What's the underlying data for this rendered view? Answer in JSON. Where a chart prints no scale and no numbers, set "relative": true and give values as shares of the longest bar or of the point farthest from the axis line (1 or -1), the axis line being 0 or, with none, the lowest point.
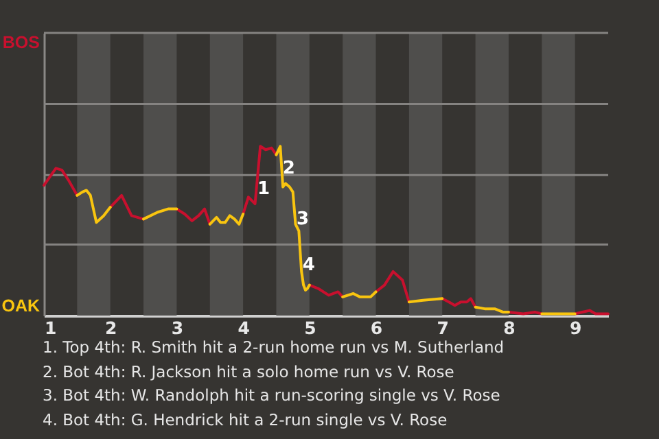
{
  "chart_data": {
    "type": "line",
    "relative": true,
    "x": [
      1,
      1.18,
      1.27,
      1.37,
      1.5,
      1.58,
      1.64,
      1.7,
      1.79,
      1.9,
      2,
      2.17,
      2.32,
      2.5,
      2.71,
      2.87,
      3,
      3.12,
      3.23,
      3.33,
      3.42,
      3.5,
      3.6,
      3.66,
      3.73,
      3.8,
      3.87,
      3.94,
      4,
      4.08,
      4.18,
      4.26,
      4.34,
      4.43,
      4.5,
      4.56,
      4.6,
      4.64,
      4.7,
      4.75,
      4.79,
      4.84,
      4.88,
      4.91,
      4.94,
      4.97,
      5,
      5.13,
      5.29,
      5.43,
      5.5,
      5.66,
      5.76,
      5.92,
      6,
      6.13,
      6.26,
      6.4,
      6.5,
      6.71,
      7,
      7.1,
      7.19,
      7.28,
      7.37,
      7.43,
      7.5,
      7.64,
      7.79,
      7.92,
      8,
      8.22,
      8.4,
      8.5,
      8.75,
      9,
      9.11,
      9.22,
      9.31,
      9.5
    ],
    "series": [
      {
        "name": "BOS",
        "color": "#c8102e",
        "values": [
          0.77,
          0.87,
          0.86,
          0.8,
          0.71,
          null,
          null,
          null,
          null,
          null,
          0.64,
          0.71,
          0.59,
          0.57,
          null,
          null,
          0.63,
          0.6,
          0.56,
          0.59,
          0.63,
          0.54,
          null,
          null,
          null,
          null,
          null,
          null,
          0.6,
          0.7,
          0.66,
          1,
          0.98,
          0.99,
          0.95,
          null,
          null,
          null,
          null,
          null,
          null,
          null,
          null,
          null,
          null,
          null,
          0.18,
          0.16,
          0.12,
          0.14,
          0.11,
          null,
          null,
          null,
          0.14,
          0.18,
          0.26,
          0.21,
          0.08,
          null,
          0.1,
          0.08,
          0.06,
          0.08,
          0.08,
          0.1,
          0.05,
          null,
          null,
          null,
          0.02,
          0.01,
          0.02,
          0.01,
          null,
          0.01,
          0.02,
          0.03,
          0.01,
          0.01
        ]
      },
      {
        "name": "OAK",
        "color": "#f9c50f",
        "values": [
          null,
          null,
          null,
          null,
          0.71,
          0.73,
          0.74,
          0.71,
          0.55,
          0.59,
          0.64,
          null,
          null,
          0.57,
          0.61,
          0.63,
          0.63,
          null,
          null,
          null,
          null,
          0.54,
          0.58,
          0.55,
          0.55,
          0.59,
          0.57,
          0.54,
          0.6,
          null,
          null,
          null,
          null,
          null,
          0.95,
          1,
          0.76,
          0.78,
          0.76,
          0.73,
          0.54,
          0.5,
          0.26,
          0.18,
          0.15,
          0.16,
          0.18,
          null,
          null,
          null,
          0.11,
          0.13,
          0.11,
          0.11,
          0.14,
          null,
          null,
          null,
          0.08,
          0.09,
          0.1,
          null,
          null,
          null,
          null,
          null,
          0.05,
          0.04,
          0.04,
          0.02,
          0.02,
          null,
          null,
          0.01,
          0.01,
          0.01,
          null,
          null,
          null,
          null
        ]
      }
    ],
    "xlim": [
      1,
      9.5
    ],
    "xticks": [
      1,
      2,
      3,
      4,
      5,
      6,
      7,
      8,
      9
    ],
    "ref_lines": [
      {
        "axis": "y",
        "value": 0.42,
        "color": "#858381"
      },
      {
        "axis": "y",
        "value": 0.83,
        "color": "#858381"
      },
      {
        "axis": "y",
        "value": 1.25,
        "color": "#858381"
      },
      {
        "axis": "y",
        "value": 1.67,
        "color": "#858381"
      }
    ],
    "bands": [
      {
        "axis": "x",
        "from": 1.5,
        "to": 2,
        "color": "#4f4e4c"
      },
      {
        "axis": "x",
        "from": 2.5,
        "to": 3,
        "color": "#4f4e4c"
      },
      {
        "axis": "x",
        "from": 3.5,
        "to": 4,
        "color": "#4f4e4c"
      },
      {
        "axis": "x",
        "from": 4.5,
        "to": 5,
        "color": "#4f4e4c"
      },
      {
        "axis": "x",
        "from": 5.5,
        "to": 6,
        "color": "#4f4e4c"
      },
      {
        "axis": "x",
        "from": 6.5,
        "to": 7,
        "color": "#4f4e4c"
      },
      {
        "axis": "x",
        "from": 7.5,
        "to": 8,
        "color": "#4f4e4c"
      },
      {
        "axis": "x",
        "from": 8.5,
        "to": 9,
        "color": "#4f4e4c"
      }
    ],
    "annotations": [
      {
        "text": "1",
        "x": 4.31,
        "y": 0.75
      },
      {
        "text": "2",
        "x": 4.69,
        "y": 0.87
      },
      {
        "text": "3",
        "x": 4.9,
        "y": 0.57
      },
      {
        "text": "4",
        "x": 4.99,
        "y": 0.3
      },
      "1. Top 4th: R. Smith hit a 2-run home run vs M. Sutherland",
      "2. Bot 4th: R. Jackson hit a solo home run vs V. Rose",
      "3. Bot 4th: W. Randolph hit a run-scoring single vs V. Rose",
      "4. Bot 4th: G. Hendrick hit a 2-run single vs V. Rose"
    ]
  }
}
